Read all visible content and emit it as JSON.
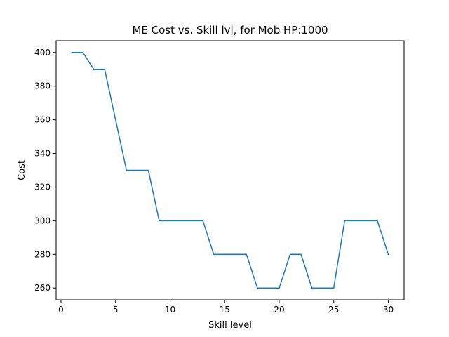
{
  "chart_data": {
    "type": "line",
    "title": "ME Cost vs. Skill lvl, for Mob HP:1000",
    "xlabel": "Skill level",
    "ylabel": "Cost",
    "xlim": [
      -0.45,
      31.45
    ],
    "ylim": [
      253,
      407
    ],
    "xticks": [
      0,
      5,
      10,
      15,
      20,
      25,
      30
    ],
    "yticks": [
      260,
      280,
      300,
      320,
      340,
      360,
      380,
      400
    ],
    "grid": false,
    "series": [
      {
        "x": [
          1,
          2,
          3,
          4,
          5,
          6,
          7,
          8,
          9,
          10,
          11,
          12,
          13,
          14,
          15,
          16,
          17,
          18,
          19,
          20,
          21,
          22,
          23,
          24,
          25,
          26,
          27,
          28,
          29,
          30
        ],
        "y": [
          400,
          400,
          390,
          390,
          360,
          330,
          330,
          330,
          300,
          300,
          300,
          300,
          300,
          280,
          280,
          280,
          280,
          260,
          260,
          260,
          280,
          280,
          260,
          260,
          260,
          300,
          300,
          300,
          300,
          280
        ],
        "color": "#1f77b4"
      }
    ]
  }
}
